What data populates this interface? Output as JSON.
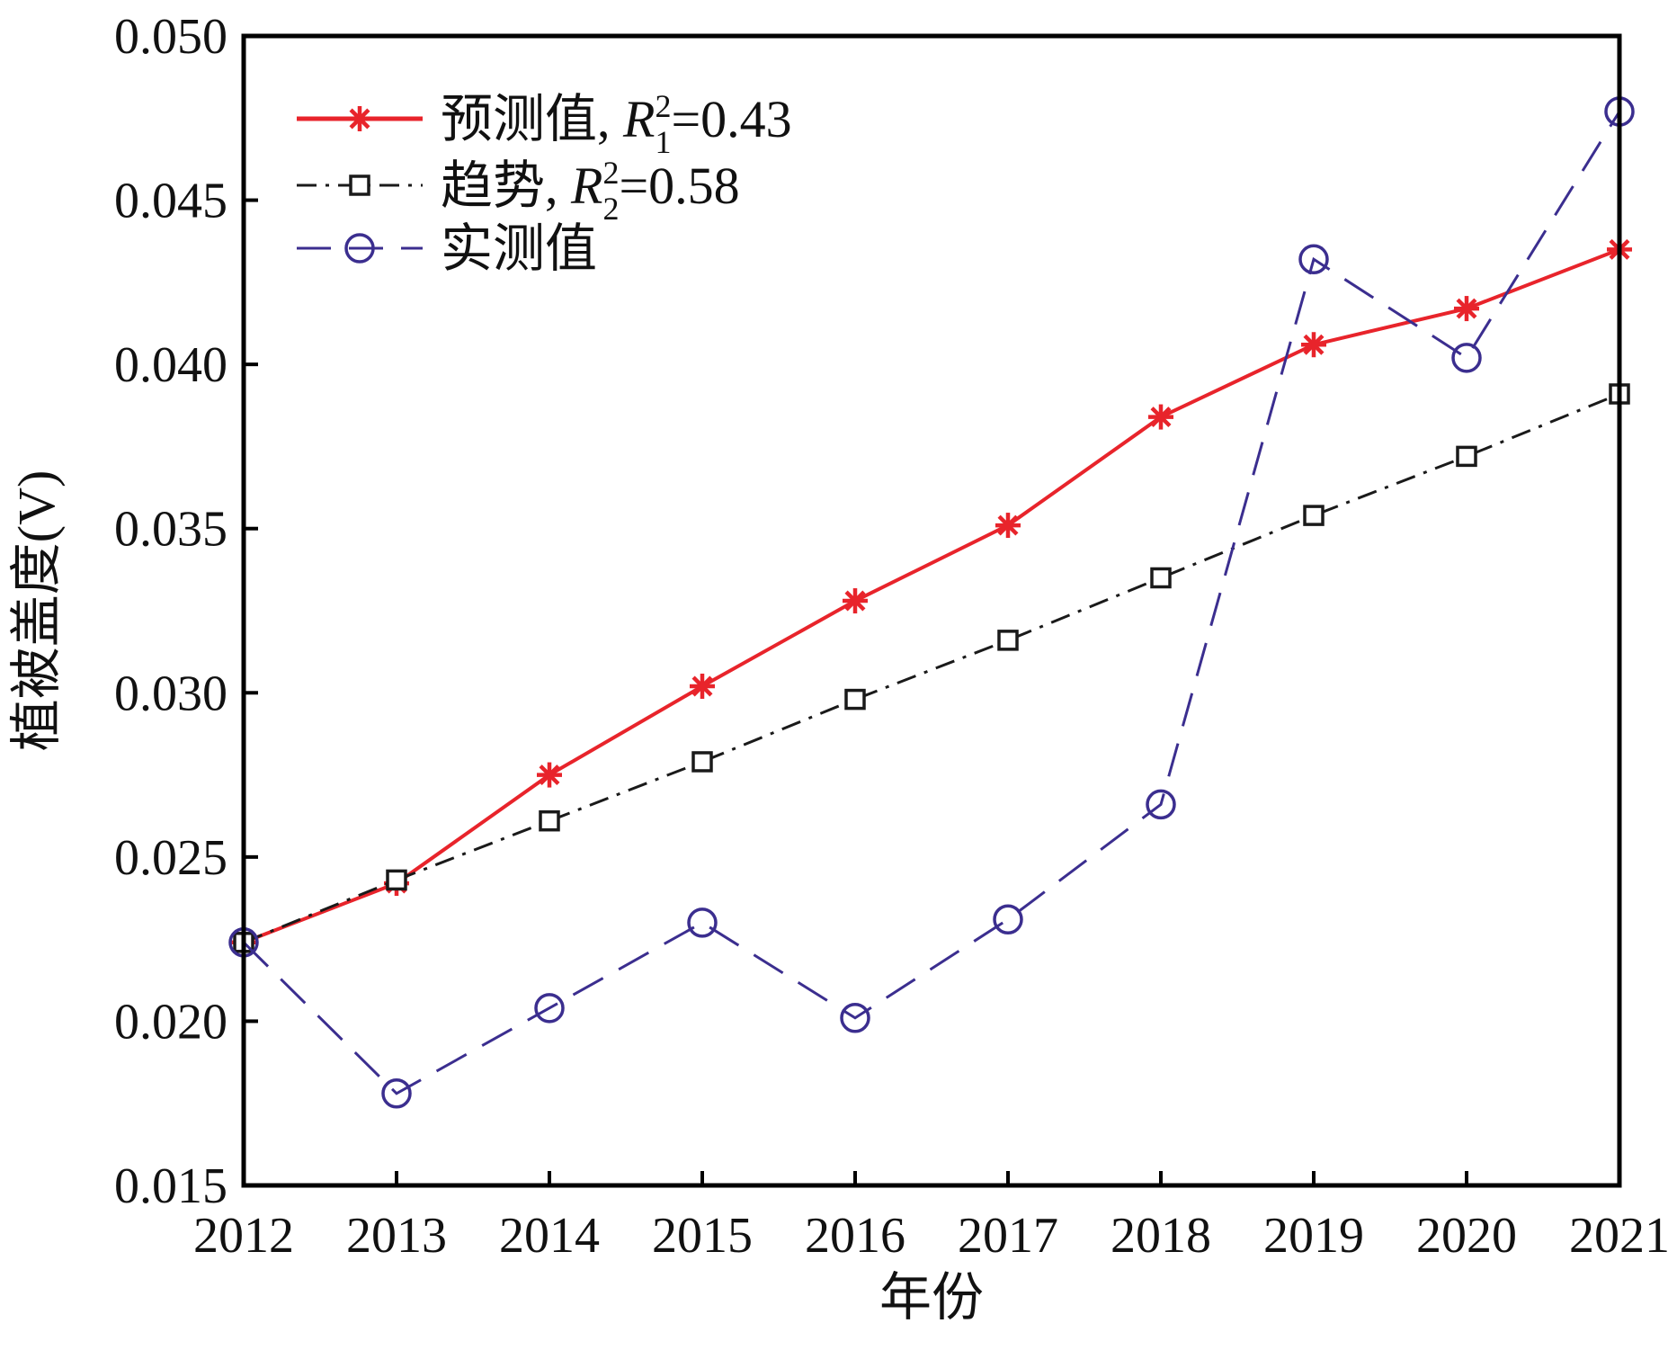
{
  "chart_data": {
    "type": "line",
    "title": "",
    "xlabel": "年份",
    "ylabel": "植被盖度(V)",
    "x": [
      2012,
      2013,
      2014,
      2015,
      2016,
      2017,
      2018,
      2019,
      2020,
      2021
    ],
    "x_tick_labels": [
      "2012",
      "2013",
      "2014",
      "2015",
      "2016",
      "2017",
      "2018",
      "2019",
      "2020",
      "2021"
    ],
    "xlim": [
      2012,
      2021
    ],
    "ylim": [
      0.015,
      0.05
    ],
    "y_ticks": [
      0.015,
      0.02,
      0.025,
      0.03,
      0.035,
      0.04,
      0.045,
      0.05
    ],
    "y_tick_labels": [
      "0.015",
      "0.020",
      "0.025",
      "0.030",
      "0.035",
      "0.040",
      "0.045",
      "0.050"
    ],
    "grid": false,
    "legend_position": "top-left",
    "series": [
      {
        "name": "预测值",
        "legend_label": "预测值, ",
        "r2_symbol": "R",
        "r2_sup": "2",
        "r2_sub": "1",
        "r2_value": "=0.43",
        "color": "#e8242b",
        "line_style": "solid",
        "marker": "asterisk",
        "values": [
          0.0224,
          0.0242,
          0.0275,
          0.0302,
          0.0328,
          0.0351,
          0.0384,
          0.0406,
          0.0417,
          0.0435
        ]
      },
      {
        "name": "趋势",
        "legend_label": "趋势, ",
        "r2_symbol": "R",
        "r2_sup": "2",
        "r2_sub": "2",
        "r2_value": "=0.58",
        "color": "#1a1a1a",
        "line_style": "dash-dot",
        "marker": "square",
        "values": [
          0.0224,
          0.0243,
          0.0261,
          0.0279,
          0.0298,
          0.0316,
          0.0335,
          0.0354,
          0.0372,
          0.0391
        ]
      },
      {
        "name": "实测值",
        "legend_label": "实测值",
        "color": "#3b2e8f",
        "line_style": "dashed",
        "marker": "circle",
        "values": [
          0.0224,
          0.0178,
          0.0204,
          0.023,
          0.0201,
          0.0231,
          0.0266,
          0.0432,
          0.0402,
          0.0477
        ]
      }
    ]
  }
}
